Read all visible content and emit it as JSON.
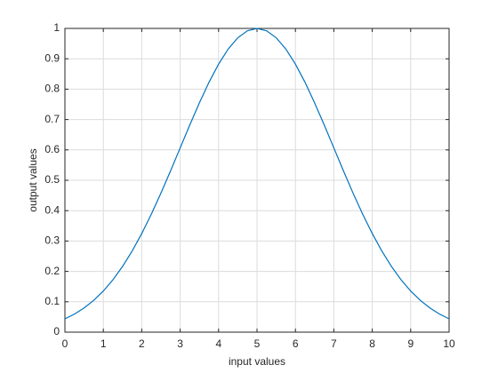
{
  "chart_data": {
    "type": "line",
    "xlabel": "input values",
    "ylabel": "output values",
    "x": [
      0,
      0.25,
      0.5,
      0.75,
      1,
      1.25,
      1.5,
      1.75,
      2,
      2.25,
      2.5,
      2.75,
      3,
      3.25,
      3.5,
      3.75,
      4,
      4.25,
      4.5,
      4.75,
      5,
      5.25,
      5.5,
      5.75,
      6,
      6.25,
      6.5,
      6.75,
      7,
      7.25,
      7.5,
      7.75,
      8,
      8.25,
      8.5,
      8.75,
      9,
      9.25,
      9.5,
      9.75,
      10
    ],
    "series": [
      {
        "color": "#0072bd",
        "values": [
          0.0439,
          0.0596,
          0.0796,
          0.1046,
          0.1353,
          0.1724,
          0.2163,
          0.2671,
          0.3247,
          0.3886,
          0.4578,
          0.5311,
          0.6065,
          0.6819,
          0.7548,
          0.8226,
          0.8825,
          0.9321,
          0.9692,
          0.9922,
          1,
          0.9922,
          0.9692,
          0.9321,
          0.8825,
          0.8226,
          0.7548,
          0.6819,
          0.6065,
          0.5311,
          0.4578,
          0.3886,
          0.3247,
          0.2671,
          0.2163,
          0.1724,
          0.1353,
          0.1046,
          0.0796,
          0.0596,
          0.0439
        ]
      }
    ],
    "xlim": [
      0,
      10
    ],
    "xticks": [
      0,
      1,
      2,
      3,
      4,
      5,
      6,
      7,
      8,
      9,
      10
    ],
    "ylim": [
      0,
      1
    ],
    "yticks": [
      0,
      0.1,
      0.2,
      0.3,
      0.4,
      0.5,
      0.6,
      0.7,
      0.8,
      0.9,
      1
    ],
    "grid": true
  }
}
